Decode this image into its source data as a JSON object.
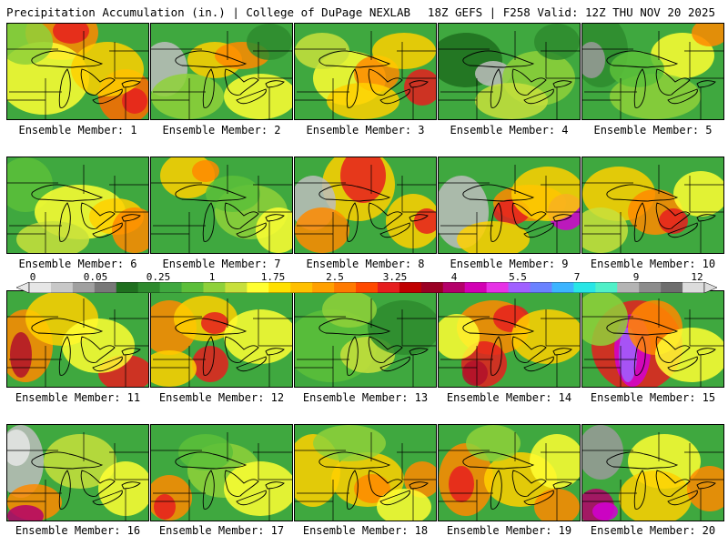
{
  "header": {
    "left": "Precipitation Accumulation (in.) | College of DuPage NEXLAB",
    "right": "18Z GEFS | F258 Valid: 12Z THU NOV 20 2025"
  },
  "colorbar": {
    "labels": [
      "0",
      "0.05",
      "0.25",
      "1",
      "1.75",
      "2.5",
      "3.25",
      "4",
      "5.5",
      "7",
      "9",
      "12"
    ],
    "colors": [
      "#e6e6e6",
      "#c8c8c8",
      "#a0a0a0",
      "#787878",
      "#1f6f1f",
      "#2e8b2e",
      "#3fa83f",
      "#5cbf3a",
      "#8fd13a",
      "#c8e03c",
      "#ffff32",
      "#ffe000",
      "#ffc000",
      "#ffa000",
      "#ff7a00",
      "#ff4a00",
      "#e61e1e",
      "#c00000",
      "#9a0024",
      "#b4006a",
      "#d200b4",
      "#e632e6",
      "#a060ff",
      "#6a82ff",
      "#3cb4ff",
      "#28e6e6",
      "#50f0c8",
      "#b4b4b4",
      "#8c8c8c",
      "#6e6e6e",
      "#dcdcdc"
    ]
  },
  "members": [
    {
      "caption": "Ensemble Member: 1"
    },
    {
      "caption": "Ensemble Member: 2"
    },
    {
      "caption": "Ensemble Member: 3"
    },
    {
      "caption": "Ensemble Member: 4"
    },
    {
      "caption": "Ensemble Member: 5"
    },
    {
      "caption": "Ensemble Member: 6"
    },
    {
      "caption": "Ensemble Member: 7"
    },
    {
      "caption": "Ensemble Member: 8"
    },
    {
      "caption": "Ensemble Member: 9"
    },
    {
      "caption": "Ensemble Member: 10"
    },
    {
      "caption": "Ensemble Member: 11"
    },
    {
      "caption": "Ensemble Member: 12"
    },
    {
      "caption": "Ensemble Member: 13"
    },
    {
      "caption": "Ensemble Member: 14"
    },
    {
      "caption": "Ensemble Member: 15"
    },
    {
      "caption": "Ensemble Member: 16"
    },
    {
      "caption": "Ensemble Member: 17"
    },
    {
      "caption": "Ensemble Member: 18"
    },
    {
      "caption": "Ensemble Member: 19"
    },
    {
      "caption": "Ensemble Member: 20"
    }
  ]
}
